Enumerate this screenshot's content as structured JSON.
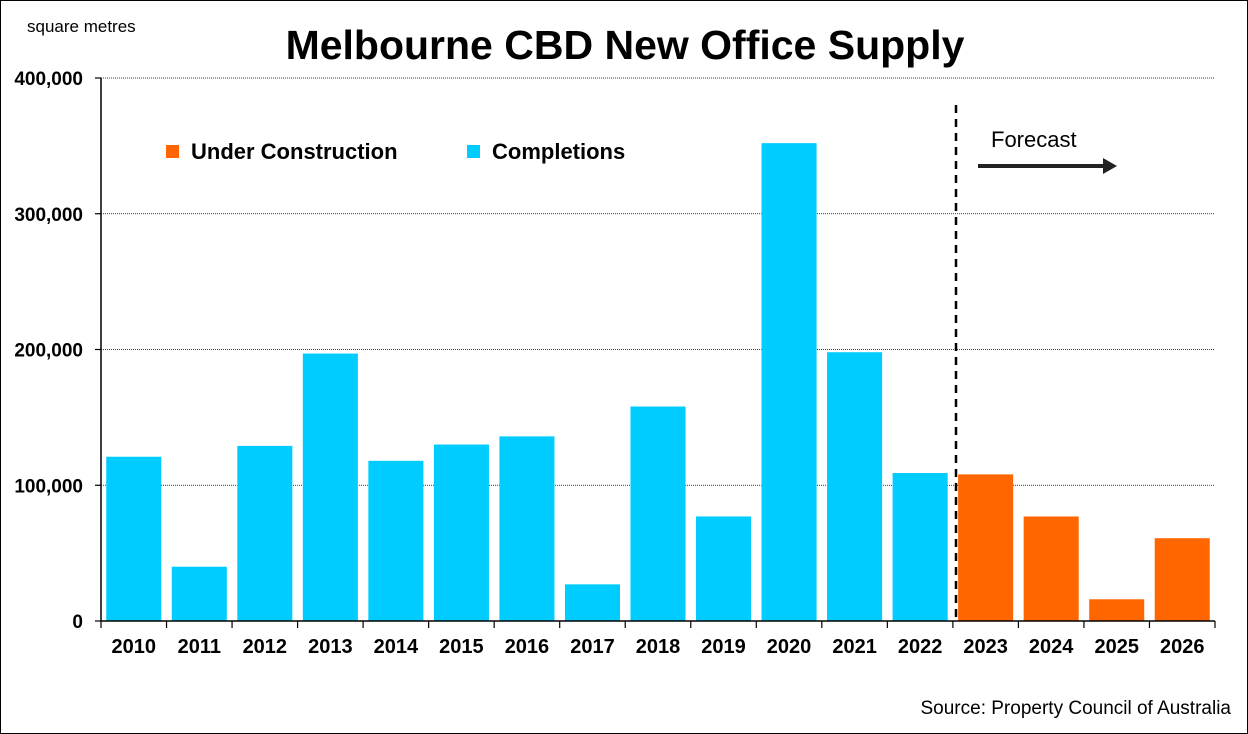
{
  "chart_data": {
    "type": "bar",
    "title": "Melbourne CBD New Office Supply",
    "ylabel": "square metres",
    "xlabel": "",
    "source": "Source: Property Council of Australia",
    "ylim": [
      0,
      400000
    ],
    "yticks": [
      "0",
      "100,000",
      "200,000",
      "300,000",
      "400,000"
    ],
    "ytick_values": [
      0,
      100000,
      200000,
      300000,
      400000
    ],
    "grid": true,
    "legend_position": "top-left",
    "annotation": "Forecast",
    "categories": [
      "2010",
      "2011",
      "2012",
      "2013",
      "2014",
      "2015",
      "2016",
      "2017",
      "2018",
      "2019",
      "2020",
      "2021",
      "2022",
      "2023",
      "2024",
      "2025",
      "2026"
    ],
    "series": [
      {
        "name": "Under Construction",
        "color": "#FF6600",
        "values": [
          null,
          null,
          null,
          null,
          null,
          null,
          null,
          null,
          null,
          null,
          null,
          null,
          null,
          108000,
          77000,
          16000,
          61000
        ]
      },
      {
        "name": "Completions",
        "color": "#00CCFF",
        "values": [
          121000,
          40000,
          129000,
          197000,
          118000,
          130000,
          136000,
          27000,
          158000,
          77000,
          352000,
          198000,
          109000,
          null,
          null,
          null,
          null
        ]
      }
    ]
  }
}
